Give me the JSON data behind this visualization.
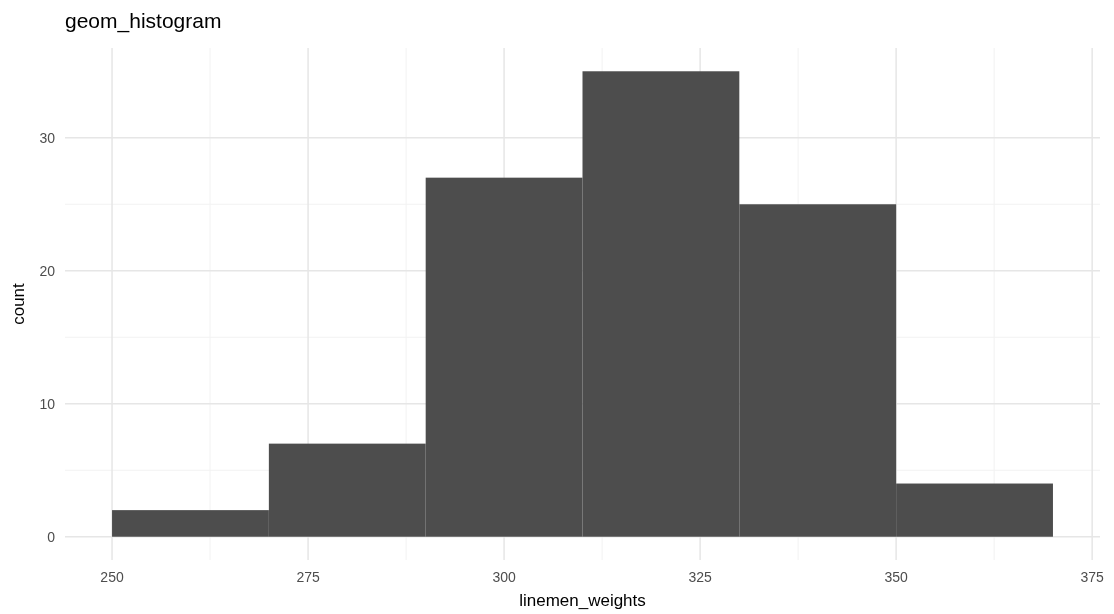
{
  "chart_data": {
    "type": "histogram",
    "title": "geom_histogram",
    "xlabel": "linemen_weights",
    "ylabel": "count",
    "bins": [
      250,
      270,
      290,
      310,
      330,
      350,
      370
    ],
    "values": [
      2,
      7,
      27,
      35,
      25,
      4
    ],
    "color": "#4d4d4d",
    "xlim": [
      244,
      376
    ],
    "xticks": [
      250,
      275,
      300,
      325,
      350,
      375
    ],
    "ylim": [
      -1.75,
      36.75
    ],
    "yticks": [
      0,
      10,
      20,
      30
    ],
    "grid": true
  }
}
